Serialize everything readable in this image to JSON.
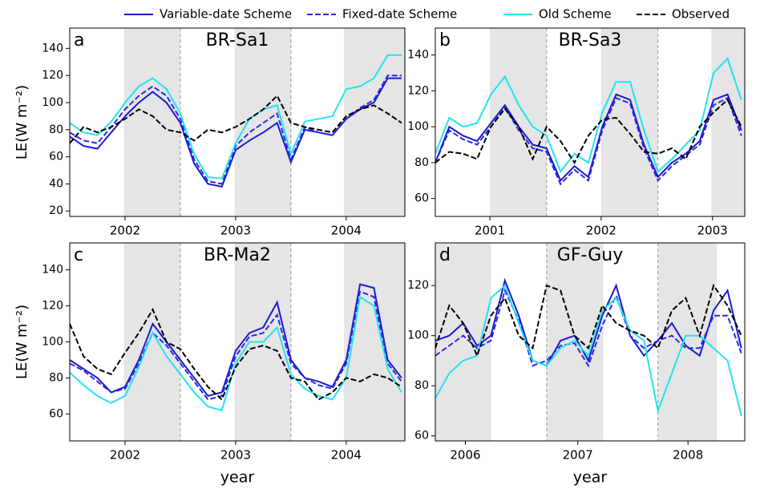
{
  "chart_data": [
    {
      "type": "line",
      "label": "a",
      "title": "BR-Sa1",
      "ylabel": "LE(W m⁻²)",
      "legend": "above",
      "x": [
        2002.0,
        2002.125,
        2002.25,
        2002.375,
        2002.5,
        2002.625,
        2002.75,
        2002.875,
        2003.0,
        2003.125,
        2003.25,
        2003.375,
        2003.5,
        2003.625,
        2003.75,
        2003.875,
        2004.0,
        2004.125,
        2004.25,
        2004.375,
        2004.5,
        2004.625,
        2004.75,
        2004.875,
        2005.0
      ],
      "xlim": [
        2002,
        2005.03
      ],
      "ylim": [
        16,
        155
      ],
      "xticks": [
        {
          "value": 2002.5,
          "label": "2002"
        },
        {
          "value": 2003.5,
          "label": "2003"
        },
        {
          "value": 2004.5,
          "label": "2004"
        }
      ],
      "yticks": [
        20,
        40,
        60,
        80,
        100,
        120,
        140
      ],
      "shaded_spans": [
        [
          2002.49,
          2003.0
        ],
        [
          2003.49,
          2004.0
        ],
        [
          2004.48,
          2005.03
        ]
      ],
      "vlines": [
        2003,
        2004
      ],
      "series": [
        {
          "name": "Variable-date Scheme",
          "color": "#1a1ad0",
          "linestyle": "solid",
          "values": [
            75,
            68,
            66,
            78,
            90,
            100,
            108,
            100,
            85,
            55,
            40,
            38,
            65,
            72,
            78,
            85,
            56,
            80,
            78,
            76,
            88,
            95,
            100,
            118,
            118
          ]
        },
        {
          "name": "Fixed-date Scheme",
          "color": "#2a2ae6",
          "linestyle": "dashed",
          "values": [
            78,
            72,
            70,
            82,
            95,
            105,
            112,
            105,
            88,
            58,
            42,
            40,
            68,
            78,
            85,
            92,
            58,
            82,
            78,
            76,
            88,
            96,
            102,
            120,
            120
          ]
        },
        {
          "name": "Old Scheme",
          "color": "#22e3ef",
          "linestyle": "solid",
          "values": [
            85,
            78,
            76,
            86,
            100,
            112,
            118,
            110,
            92,
            62,
            45,
            44,
            70,
            88,
            95,
            98,
            62,
            86,
            88,
            90,
            110,
            112,
            118,
            135,
            135
          ]
        },
        {
          "name": "Observed",
          "color": "#000000",
          "linestyle": "dashed",
          "values": [
            70,
            82,
            78,
            82,
            88,
            95,
            90,
            80,
            78,
            72,
            80,
            78,
            82,
            88,
            95,
            105,
            85,
            82,
            80,
            78,
            90,
            95,
            98,
            92,
            85
          ]
        }
      ]
    },
    {
      "type": "line",
      "label": "b",
      "title": "BR-Sa3",
      "x": [
        2001.0,
        2001.125,
        2001.25,
        2001.375,
        2001.5,
        2001.625,
        2001.75,
        2001.875,
        2002.0,
        2002.125,
        2002.25,
        2002.375,
        2002.5,
        2002.625,
        2002.75,
        2002.875,
        2003.0,
        2003.125,
        2003.25,
        2003.375,
        2003.5,
        2003.625,
        2003.75
      ],
      "xlim": [
        2001,
        2003.78
      ],
      "ylim": [
        50,
        155
      ],
      "xticks": [
        {
          "value": 2001.49,
          "label": "2001"
        },
        {
          "value": 2002.49,
          "label": "2002"
        },
        {
          "value": 2003.49,
          "label": "2003"
        }
      ],
      "yticks": [
        60,
        80,
        100,
        120,
        140
      ],
      "shaded_spans": [
        [
          2001.49,
          2002.0
        ],
        [
          2002.49,
          2003.0
        ],
        [
          2003.48,
          2003.78
        ]
      ],
      "vlines": [
        2002,
        2003
      ],
      "series": [
        {
          "name": "Variable-date Scheme",
          "color": "#1a1ad0",
          "linestyle": "solid",
          "values": [
            80,
            100,
            95,
            92,
            102,
            112,
            100,
            90,
            88,
            70,
            78,
            72,
            100,
            118,
            115,
            90,
            72,
            80,
            85,
            92,
            115,
            118,
            98
          ]
        },
        {
          "name": "Fixed-date Scheme",
          "color": "#2a2ae6",
          "linestyle": "dashed",
          "values": [
            80,
            98,
            93,
            90,
            100,
            111,
            98,
            88,
            86,
            68,
            76,
            70,
            98,
            116,
            113,
            88,
            70,
            78,
            84,
            90,
            112,
            116,
            95
          ]
        },
        {
          "name": "Old Scheme",
          "color": "#22e3ef",
          "linestyle": "solid",
          "values": [
            85,
            105,
            100,
            102,
            118,
            128,
            112,
            100,
            95,
            75,
            85,
            80,
            108,
            125,
            125,
            98,
            75,
            82,
            90,
            98,
            130,
            138,
            115
          ]
        },
        {
          "name": "Observed",
          "color": "#000000",
          "linestyle": "dashed",
          "values": [
            80,
            86,
            85,
            82,
            100,
            110,
            100,
            82,
            100,
            92,
            80,
            95,
            104,
            105,
            96,
            86,
            85,
            88,
            82,
            100,
            108,
            115,
            100
          ]
        }
      ]
    },
    {
      "type": "line",
      "label": "c",
      "title": "BR-Ma2",
      "ylabel": "LE(W m⁻²)",
      "xlabel": "year",
      "x": [
        2002.0,
        2002.125,
        2002.25,
        2002.375,
        2002.5,
        2002.625,
        2002.75,
        2002.875,
        2003.0,
        2003.125,
        2003.25,
        2003.375,
        2003.5,
        2003.625,
        2003.75,
        2003.875,
        2004.0,
        2004.125,
        2004.25,
        2004.375,
        2004.5,
        2004.625,
        2004.75,
        2004.875,
        2005.0
      ],
      "xlim": [
        2002,
        2005.03
      ],
      "ylim": [
        45,
        155
      ],
      "xticks": [
        {
          "value": 2002.5,
          "label": "2002"
        },
        {
          "value": 2003.5,
          "label": "2003"
        },
        {
          "value": 2004.5,
          "label": "2004"
        }
      ],
      "yticks": [
        60,
        80,
        100,
        120,
        140
      ],
      "shaded_spans": [
        [
          2002.49,
          2003.0
        ],
        [
          2003.49,
          2004.0
        ],
        [
          2004.48,
          2005.03
        ]
      ],
      "vlines": [
        2003,
        2004
      ],
      "series": [
        {
          "name": "Variable-date Scheme",
          "color": "#1a1ad0",
          "linestyle": "solid",
          "values": [
            90,
            85,
            80,
            72,
            75,
            90,
            110,
            100,
            90,
            80,
            70,
            72,
            95,
            105,
            108,
            122,
            90,
            80,
            78,
            75,
            90,
            132,
            130,
            90,
            80
          ]
        },
        {
          "name": "Fixed-date Scheme",
          "color": "#2a2ae6",
          "linestyle": "dashed",
          "values": [
            88,
            84,
            78,
            72,
            74,
            88,
            105,
            98,
            88,
            78,
            68,
            70,
            92,
            103,
            105,
            115,
            88,
            80,
            76,
            74,
            88,
            128,
            125,
            88,
            78
          ]
        },
        {
          "name": "Old Scheme",
          "color": "#22e3ef",
          "linestyle": "solid",
          "values": [
            83,
            76,
            70,
            66,
            70,
            86,
            105,
            92,
            82,
            72,
            64,
            62,
            88,
            100,
            100,
            108,
            82,
            74,
            70,
            68,
            80,
            125,
            120,
            85,
            72
          ]
        },
        {
          "name": "Observed",
          "color": "#000000",
          "linestyle": "dashed",
          "values": [
            110,
            92,
            85,
            82,
            94,
            105,
            118,
            100,
            96,
            85,
            75,
            68,
            86,
            96,
            98,
            95,
            80,
            78,
            68,
            72,
            80,
            78,
            82,
            80,
            75
          ]
        }
      ]
    },
    {
      "type": "line",
      "label": "d",
      "title": "GF-Guy",
      "xlabel": "year",
      "x": [
        2006.0,
        2006.125,
        2006.25,
        2006.375,
        2006.5,
        2006.625,
        2006.75,
        2006.875,
        2007.0,
        2007.125,
        2007.25,
        2007.375,
        2007.5,
        2007.625,
        2007.75,
        2007.875,
        2008.0,
        2008.125,
        2008.25,
        2008.375,
        2008.5,
        2008.625,
        2008.75
      ],
      "xlim": [
        2006,
        2008.78
      ],
      "ylim": [
        58,
        137
      ],
      "xticks": [
        {
          "value": 2006.27,
          "label": "2006"
        },
        {
          "value": 2007.28,
          "label": "2007"
        },
        {
          "value": 2008.27,
          "label": "2008"
        }
      ],
      "yticks": [
        60,
        80,
        100,
        120
      ],
      "shaded_spans": [
        [
          2006.0,
          2006.5
        ],
        [
          2007.0,
          2007.51
        ],
        [
          2008.0,
          2008.53
        ]
      ],
      "vlines": [
        2007,
        2008
      ],
      "series": [
        {
          "name": "Variable-date Scheme",
          "color": "#1a1ad0",
          "linestyle": "solid",
          "values": [
            98,
            100,
            105,
            96,
            100,
            122,
            108,
            90,
            88,
            98,
            100,
            90,
            108,
            120,
            100,
            92,
            98,
            105,
            96,
            92,
            110,
            118,
            95
          ]
        },
        {
          "name": "Fixed-date Scheme",
          "color": "#2a2ae6",
          "linestyle": "dashed",
          "values": [
            92,
            96,
            100,
            95,
            98,
            118,
            106,
            88,
            90,
            96,
            97,
            88,
            104,
            116,
            100,
            95,
            98,
            100,
            95,
            95,
            108,
            108,
            93
          ]
        },
        {
          "name": "Old Scheme",
          "color": "#22e3ef",
          "linestyle": "solid",
          "values": [
            75,
            85,
            90,
            92,
            115,
            120,
            105,
            90,
            88,
            95,
            98,
            92,
            110,
            115,
            102,
            98,
            70,
            85,
            100,
            100,
            95,
            90,
            68
          ]
        },
        {
          "name": "Observed",
          "color": "#000000",
          "linestyle": "dashed",
          "values": [
            95,
            112,
            105,
            92,
            108,
            115,
            100,
            95,
            120,
            118,
            100,
            95,
            112,
            105,
            102,
            100,
            95,
            110,
            115,
            100,
            120,
            112,
            100
          ]
        }
      ]
    }
  ]
}
